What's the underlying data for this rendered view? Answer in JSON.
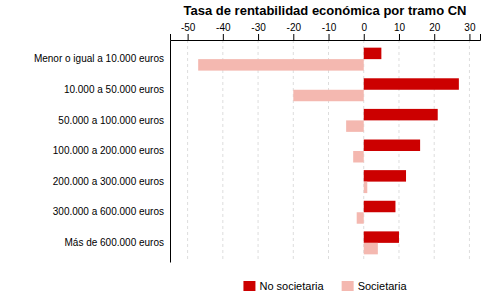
{
  "chart_data": {
    "type": "bar",
    "orientation": "horizontal",
    "title": "Tasa de rentabilidad económica por tramo CN",
    "categories": [
      "Menor o igual a 10.000 euros",
      "10.000 a 50.000 euros",
      "50.000 a 100.000 euros",
      "100.000 a 200.000 euros",
      "200.000 a 300.000 euros",
      "300.000 a 600.000 euros",
      "Más de 600.000 euros"
    ],
    "series": [
      {
        "name": "No societaria",
        "color": "#cc0000",
        "values": [
          5,
          27,
          21,
          16,
          12,
          9,
          10
        ]
      },
      {
        "name": "Societaria",
        "color": "#f4b8b0",
        "values": [
          -47,
          -20,
          -5,
          -3,
          1,
          -2,
          4
        ]
      }
    ],
    "xlim": [
      -55,
      33
    ],
    "xticks": [
      -50,
      -40,
      -30,
      -20,
      -10,
      0,
      10,
      20,
      30
    ],
    "grid": true,
    "legend": "bottom"
  }
}
